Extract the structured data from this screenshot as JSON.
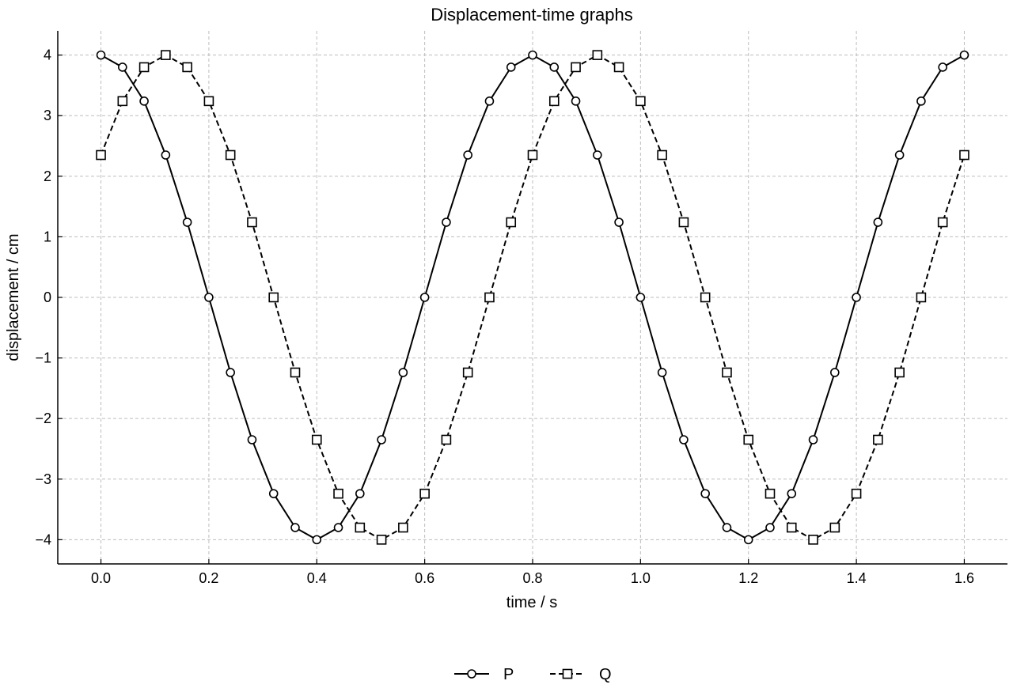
{
  "chart_data": {
    "type": "line",
    "title": "Displacement-time graphs",
    "xlabel": "time / s",
    "ylabel": "displacement / cm",
    "xlim": [
      -0.08,
      1.68
    ],
    "ylim": [
      -4.4,
      4.4
    ],
    "xticks": [
      0.0,
      0.2,
      0.4,
      0.6,
      0.8,
      1.0,
      1.2,
      1.4,
      1.6
    ],
    "xtick_labels": [
      "0.0",
      "0.2",
      "0.4",
      "0.6",
      "0.8",
      "1.0",
      "1.2",
      "1.4",
      "1.6"
    ],
    "yticks": [
      4,
      3,
      2,
      1,
      0,
      -1,
      -2,
      -3,
      -4
    ],
    "ytick_labels": [
      "4",
      "3",
      "2",
      "1",
      "0",
      "−1",
      "−2",
      "−3",
      "−4"
    ],
    "grid": true,
    "legend_position": "bottom-center",
    "x": [
      0.0,
      0.04,
      0.08,
      0.12,
      0.16,
      0.2,
      0.24,
      0.28,
      0.32,
      0.36,
      0.4,
      0.44,
      0.48,
      0.52,
      0.56,
      0.6,
      0.64,
      0.68,
      0.72,
      0.76,
      0.8,
      0.84,
      0.88,
      0.92,
      0.96,
      1.0,
      1.04,
      1.08,
      1.12,
      1.16,
      1.2,
      1.24,
      1.28,
      1.32,
      1.36,
      1.4,
      1.44,
      1.48,
      1.52,
      1.56,
      1.6
    ],
    "series": [
      {
        "name": "P",
        "color": "#000000",
        "line_style": "solid",
        "marker": "circle",
        "values": [
          4.0,
          3.8,
          3.24,
          2.35,
          1.24,
          0.0,
          -1.24,
          -2.35,
          -3.24,
          -3.8,
          -4.0,
          -3.8,
          -3.24,
          -2.35,
          -1.24,
          0.0,
          1.24,
          2.35,
          3.24,
          3.8,
          4.0,
          3.8,
          3.24,
          2.35,
          1.24,
          0.0,
          -1.24,
          -2.35,
          -3.24,
          -3.8,
          -4.0,
          -3.8,
          -3.24,
          -2.35,
          -1.24,
          0.0,
          1.24,
          2.35,
          3.24,
          3.8,
          4.0
        ]
      },
      {
        "name": "Q",
        "color": "#000000",
        "line_style": "dashed",
        "marker": "square",
        "values": [
          2.35,
          3.24,
          3.8,
          4.0,
          3.8,
          3.24,
          2.35,
          1.24,
          0.0,
          -1.24,
          -2.35,
          -3.24,
          -3.8,
          -4.0,
          -3.8,
          -3.24,
          -2.35,
          -1.24,
          0.0,
          1.24,
          2.35,
          3.24,
          3.8,
          4.0,
          3.8,
          3.24,
          2.35,
          1.24,
          0.0,
          -1.24,
          -2.35,
          -3.24,
          -3.8,
          -4.0,
          -3.8,
          -3.24,
          -2.35,
          -1.24,
          0.0,
          1.24,
          2.35
        ]
      }
    ]
  }
}
